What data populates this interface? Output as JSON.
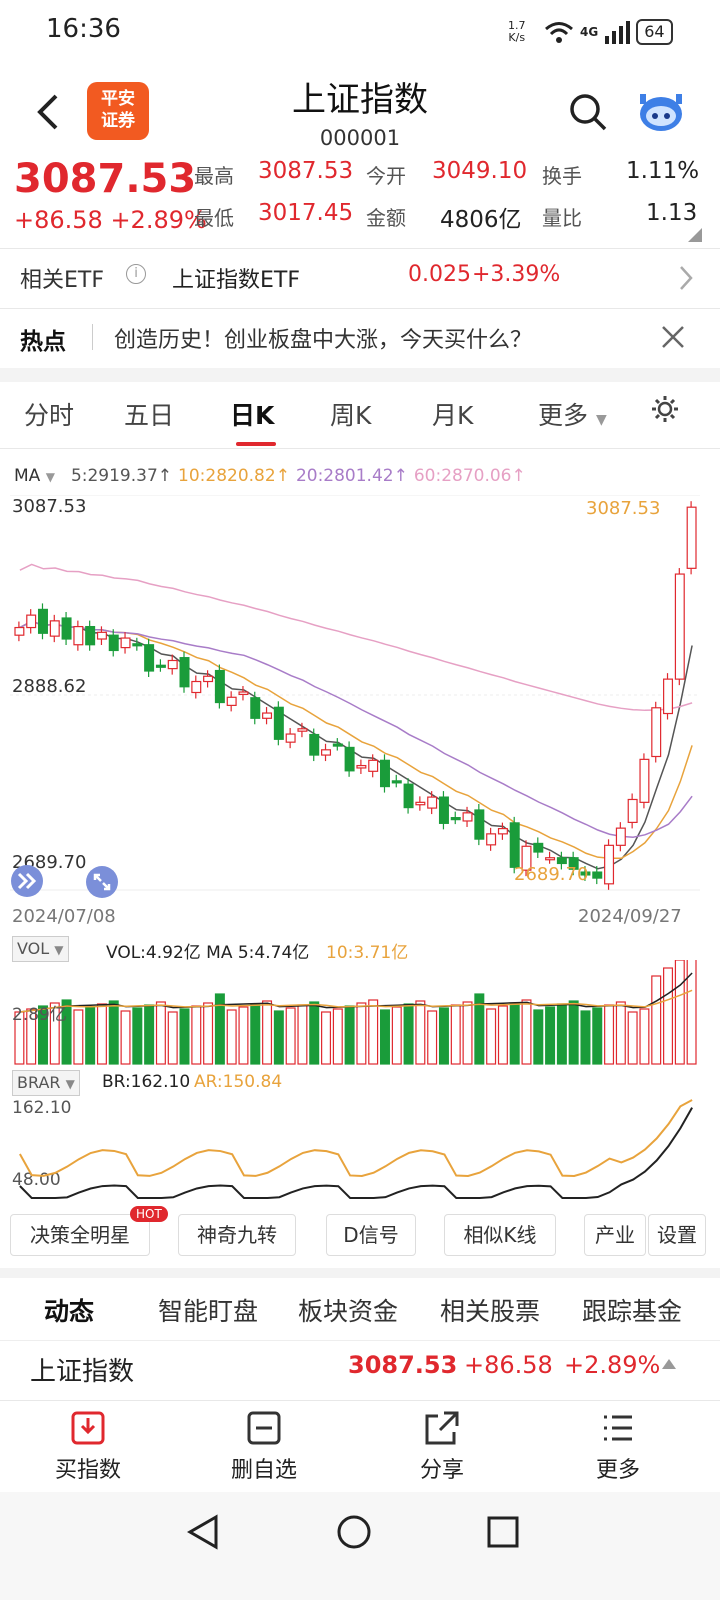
{
  "status_bar": {
    "time": "16:36",
    "speed_top": "1.7",
    "speed_bottom": "K/s",
    "network": "4G",
    "battery": "64"
  },
  "header": {
    "title": "上证指数",
    "code": "000001",
    "logo_line1": "平安",
    "logo_line2": "证券"
  },
  "quote": {
    "price": "3087.53",
    "change": "+86.58 +2.89%",
    "high_label": "最高",
    "high": "3087.53",
    "low_label": "最低",
    "low": "3017.45",
    "open_label": "今开",
    "open": "3049.10",
    "amount_label": "金额",
    "amount": "4806亿",
    "turnover_label": "换手",
    "turnover": "1.11%",
    "volume_ratio_label": "量比",
    "volume_ratio": "1.13"
  },
  "etf": {
    "label": "相关ETF",
    "info": "i",
    "name": "上证指数ETF",
    "price": "0.025",
    "change": "+3.39%"
  },
  "hot": {
    "label": "热点",
    "text": "创造历史！创业板盘中大涨，今天买什么？"
  },
  "ktabs": [
    "分时",
    "五日",
    "日K",
    "周K",
    "月K",
    "更多"
  ],
  "ma_legend": {
    "label": "MA",
    "ma5": "5:2919.37↑",
    "ma10": "10:2820.82↑",
    "ma20": "20:2801.42↑",
    "ma60": "60:2870.06↑"
  },
  "chart": {
    "axis_top": "3087.53",
    "axis_mid": "2888.62",
    "axis_bottom": "2689.70",
    "high_annot": "3087.53",
    "low_annot": "2689.70",
    "start_date": "2024/07/08",
    "end_date": "2024/09/27"
  },
  "vol": {
    "tag": "VOL",
    "legend": "VOL:4.92亿 MA 5:4.74亿",
    "ma10": "10:3.71亿",
    "axis": "2.89亿"
  },
  "brar": {
    "tag": "BRAR",
    "br": "BR:162.10",
    "ar": "AR:150.84",
    "axis_top": "162.10",
    "axis_bottom": "48.00"
  },
  "tools": {
    "items": [
      "决策全明星",
      "神奇九转",
      "D信号",
      "相似K线",
      "产业",
      "设置"
    ],
    "hot_badge": "HOT"
  },
  "bottom_tabs": [
    "动态",
    "智能盯盘",
    "板块资金",
    "相关股票",
    "跟踪基金"
  ],
  "index_row": {
    "name": "上证指数",
    "price": "3087.53",
    "change": "+86.58",
    "pct": "+2.89%"
  },
  "toolbar": {
    "buy": "买指数",
    "remove": "删自选",
    "share": "分享",
    "more": "更多"
  },
  "colors": {
    "up": "#e0282e",
    "down": "#1a9c3a",
    "ma5": "#555555",
    "ma10": "#e8a33c",
    "ma20": "#a87cc8",
    "ma60": "#e6a0c4"
  }
}
